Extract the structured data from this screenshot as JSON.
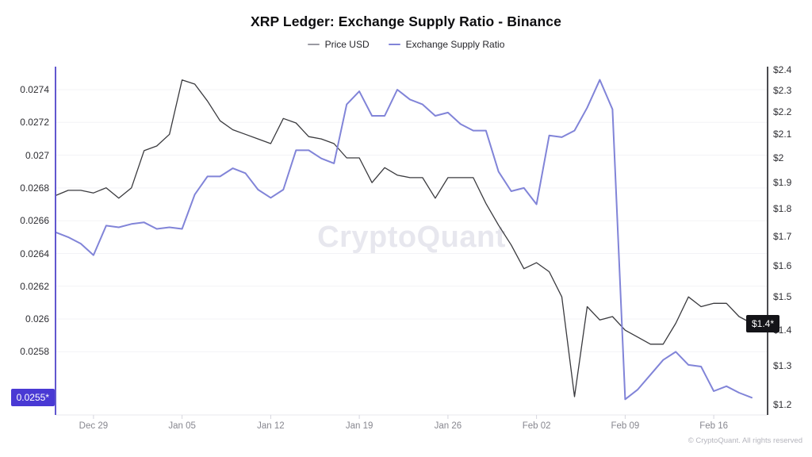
{
  "title": "XRP Ledger: Exchange Supply Ratio - Binance",
  "legend": [
    {
      "label": "Price USD",
      "color": "#9a9aa2"
    },
    {
      "label": "Exchange Supply Ratio",
      "color": "#8184d8"
    }
  ],
  "watermark": "CryptoQuant",
  "footer": "© CryptoQuant. All rights reserved",
  "colors": {
    "price_line": "#3a3a3e",
    "ratio_line": "#8184d8",
    "ratio_axis": "#6157cf",
    "price_axis": "#37373b",
    "grid": "#f3f3f6",
    "baseline": "#e9e9ee",
    "x_tick": "#d6d6de",
    "ratio_badge_bg": "#4939d4",
    "price_badge_bg": "#141418"
  },
  "left_axis": {
    "ticks": [
      "0.0274",
      "0.0272",
      "0.027",
      "0.0268",
      "0.0266",
      "0.0264",
      "0.0262",
      "0.026",
      "0.0258"
    ],
    "badge": "0.0255*"
  },
  "right_axis": {
    "ticks": [
      "$2.4",
      "$2.3",
      "$2.2",
      "$2.1",
      "$2",
      "$1.9",
      "$1.8",
      "$1.7",
      "$1.6",
      "$1.5",
      "$1.4",
      "$1.3",
      "$1.2"
    ],
    "badge": "$1.4*"
  },
  "x_axis": {
    "ticks": [
      {
        "label": "Dec 29",
        "index": 3
      },
      {
        "label": "Jan 05",
        "index": 10
      },
      {
        "label": "Jan 12",
        "index": 17
      },
      {
        "label": "Jan 19",
        "index": 24
      },
      {
        "label": "Jan 26",
        "index": 31
      },
      {
        "label": "Feb 02",
        "index": 38
      },
      {
        "label": "Feb 09",
        "index": 45
      },
      {
        "label": "Feb 16",
        "index": 52
      }
    ]
  },
  "chart_data": {
    "type": "line",
    "x": [
      "Dec 26",
      "Dec 27",
      "Dec 28",
      "Dec 29",
      "Dec 30",
      "Dec 31",
      "Jan 01",
      "Jan 02",
      "Jan 03",
      "Jan 04",
      "Jan 05",
      "Jan 06",
      "Jan 07",
      "Jan 08",
      "Jan 09",
      "Jan 10",
      "Jan 11",
      "Jan 12",
      "Jan 13",
      "Jan 14",
      "Jan 15",
      "Jan 16",
      "Jan 17",
      "Jan 18",
      "Jan 19",
      "Jan 20",
      "Jan 21",
      "Jan 22",
      "Jan 23",
      "Jan 24",
      "Jan 25",
      "Jan 26",
      "Jan 27",
      "Jan 28",
      "Jan 29",
      "Jan 30",
      "Jan 31",
      "Feb 01",
      "Feb 02",
      "Feb 03",
      "Feb 04",
      "Feb 05",
      "Feb 06",
      "Feb 07",
      "Feb 08",
      "Feb 09",
      "Feb 10",
      "Feb 11",
      "Feb 12",
      "Feb 13",
      "Feb 14",
      "Feb 15",
      "Feb 16",
      "Feb 17",
      "Feb 18",
      "Feb 19"
    ],
    "series": [
      {
        "id": "price-usd",
        "name": "Price USD",
        "axis": "right",
        "color": "#3a3a3e",
        "values": [
          1.85,
          1.87,
          1.87,
          1.86,
          1.88,
          1.84,
          1.88,
          2.03,
          2.05,
          2.1,
          2.35,
          2.33,
          2.25,
          2.16,
          2.12,
          2.1,
          2.08,
          2.06,
          2.17,
          2.15,
          2.09,
          2.08,
          2.06,
          2.0,
          2.0,
          1.9,
          1.96,
          1.93,
          1.92,
          1.92,
          1.84,
          1.92,
          1.92,
          1.92,
          1.82,
          1.74,
          1.67,
          1.59,
          1.61,
          1.58,
          1.5,
          1.22,
          1.47,
          1.43,
          1.44,
          1.4,
          1.38,
          1.36,
          1.36,
          1.42,
          1.5,
          1.47,
          1.48,
          1.48,
          1.44,
          1.42
        ]
      },
      {
        "id": "exchange-supply-ratio",
        "name": "Exchange Supply Ratio",
        "axis": "left",
        "color": "#8184d8",
        "values": [
          0.02653,
          0.0265,
          0.02646,
          0.02639,
          0.02657,
          0.02656,
          0.02658,
          0.02659,
          0.02655,
          0.02656,
          0.02655,
          0.02676,
          0.02687,
          0.02687,
          0.02692,
          0.02689,
          0.02679,
          0.02674,
          0.02679,
          0.02703,
          0.02703,
          0.02698,
          0.02695,
          0.02731,
          0.02739,
          0.02724,
          0.02724,
          0.0274,
          0.02734,
          0.02731,
          0.02724,
          0.02726,
          0.02719,
          0.02715,
          0.02715,
          0.0269,
          0.02678,
          0.0268,
          0.0267,
          0.02712,
          0.02711,
          0.02715,
          0.02729,
          0.02746,
          0.02728,
          0.02551,
          0.02557,
          0.02566,
          0.02575,
          0.0258,
          0.02572,
          0.02571,
          0.02556,
          0.02559,
          0.02555,
          0.02552
        ]
      }
    ],
    "left_ylim": [
      0.02541,
      0.02754
    ],
    "left_scale": "linear",
    "right_ylim": [
      1.175,
      2.416
    ],
    "right_scale": "log",
    "grid": "horizontal",
    "legend_position": "top",
    "current_values": {
      "exchange_supply_ratio": "0.0255*",
      "price_usd": "$1.4*"
    }
  }
}
